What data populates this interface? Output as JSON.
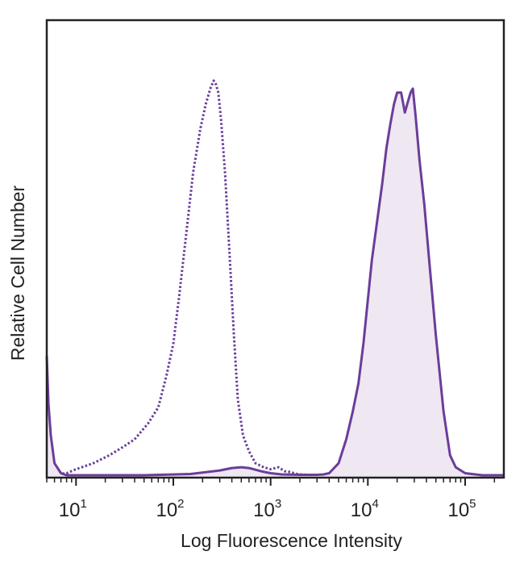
{
  "chart_data": {
    "type": "area",
    "title": "",
    "xlabel": "Log Fluorescence Intensity",
    "ylabel": "Relative Cell Number",
    "x_scale": "log",
    "xlim": [
      5,
      250000
    ],
    "ylim": [
      0,
      1
    ],
    "grid": false,
    "x_ticks": [
      {
        "value": 10,
        "base": "10",
        "exp": "1"
      },
      {
        "value": 100,
        "base": "10",
        "exp": "2"
      },
      {
        "value": 1000,
        "base": "10",
        "exp": "3"
      },
      {
        "value": 10000,
        "base": "10",
        "exp": "4"
      },
      {
        "value": 100000,
        "base": "10",
        "exp": "5"
      }
    ],
    "colors": {
      "series": "#6a3d9a",
      "fill": "#efe7f1",
      "axis": "#222222"
    },
    "series": [
      {
        "style": "dotted",
        "filled": false,
        "x": [
          5,
          5.5,
          6.5,
          8,
          10,
          15,
          22,
          30,
          40,
          55,
          70,
          85,
          100,
          115,
          135,
          160,
          190,
          215,
          240,
          260,
          275,
          290,
          310,
          340,
          380,
          420,
          460,
          520,
          600,
          700,
          850,
          1000,
          1200,
          1400,
          1600,
          1800,
          2000,
          2500,
          4000
        ],
        "y": [
          0.0,
          0.005,
          0.003,
          0.005,
          0.015,
          0.03,
          0.05,
          0.07,
          0.09,
          0.13,
          0.17,
          0.25,
          0.33,
          0.45,
          0.6,
          0.76,
          0.87,
          0.93,
          0.97,
          0.99,
          0.98,
          0.96,
          0.89,
          0.76,
          0.55,
          0.35,
          0.19,
          0.1,
          0.06,
          0.03,
          0.02,
          0.015,
          0.02,
          0.01,
          0.008,
          0.004,
          0.002,
          0.001,
          0.0
        ]
      },
      {
        "style": "solid",
        "filled": true,
        "x": [
          5,
          5.2,
          5.5,
          6,
          7,
          8,
          10,
          50,
          150,
          300,
          400,
          500,
          600,
          800,
          1000,
          1300,
          2000,
          3000,
          3500,
          4000,
          5000,
          6000,
          7000,
          8000,
          9000,
          10000,
          11000,
          12500,
          14000,
          15500,
          17000,
          18500,
          20000,
          22000,
          24000,
          26000,
          27500,
          29000,
          31000,
          34000,
          38000,
          43000,
          50000,
          60000,
          70000,
          80000,
          100000,
          150000,
          250000
        ],
        "y": [
          0.3,
          0.18,
          0.1,
          0.03,
          0.005,
          0.0,
          0.0,
          0.0,
          0.003,
          0.012,
          0.018,
          0.02,
          0.018,
          0.01,
          0.005,
          0.002,
          0.001,
          0.001,
          0.002,
          0.005,
          0.03,
          0.09,
          0.16,
          0.23,
          0.33,
          0.44,
          0.54,
          0.64,
          0.73,
          0.82,
          0.88,
          0.93,
          0.96,
          0.96,
          0.91,
          0.94,
          0.96,
          0.97,
          0.9,
          0.79,
          0.68,
          0.53,
          0.35,
          0.16,
          0.05,
          0.02,
          0.005,
          0.0,
          0.0
        ]
      }
    ]
  }
}
